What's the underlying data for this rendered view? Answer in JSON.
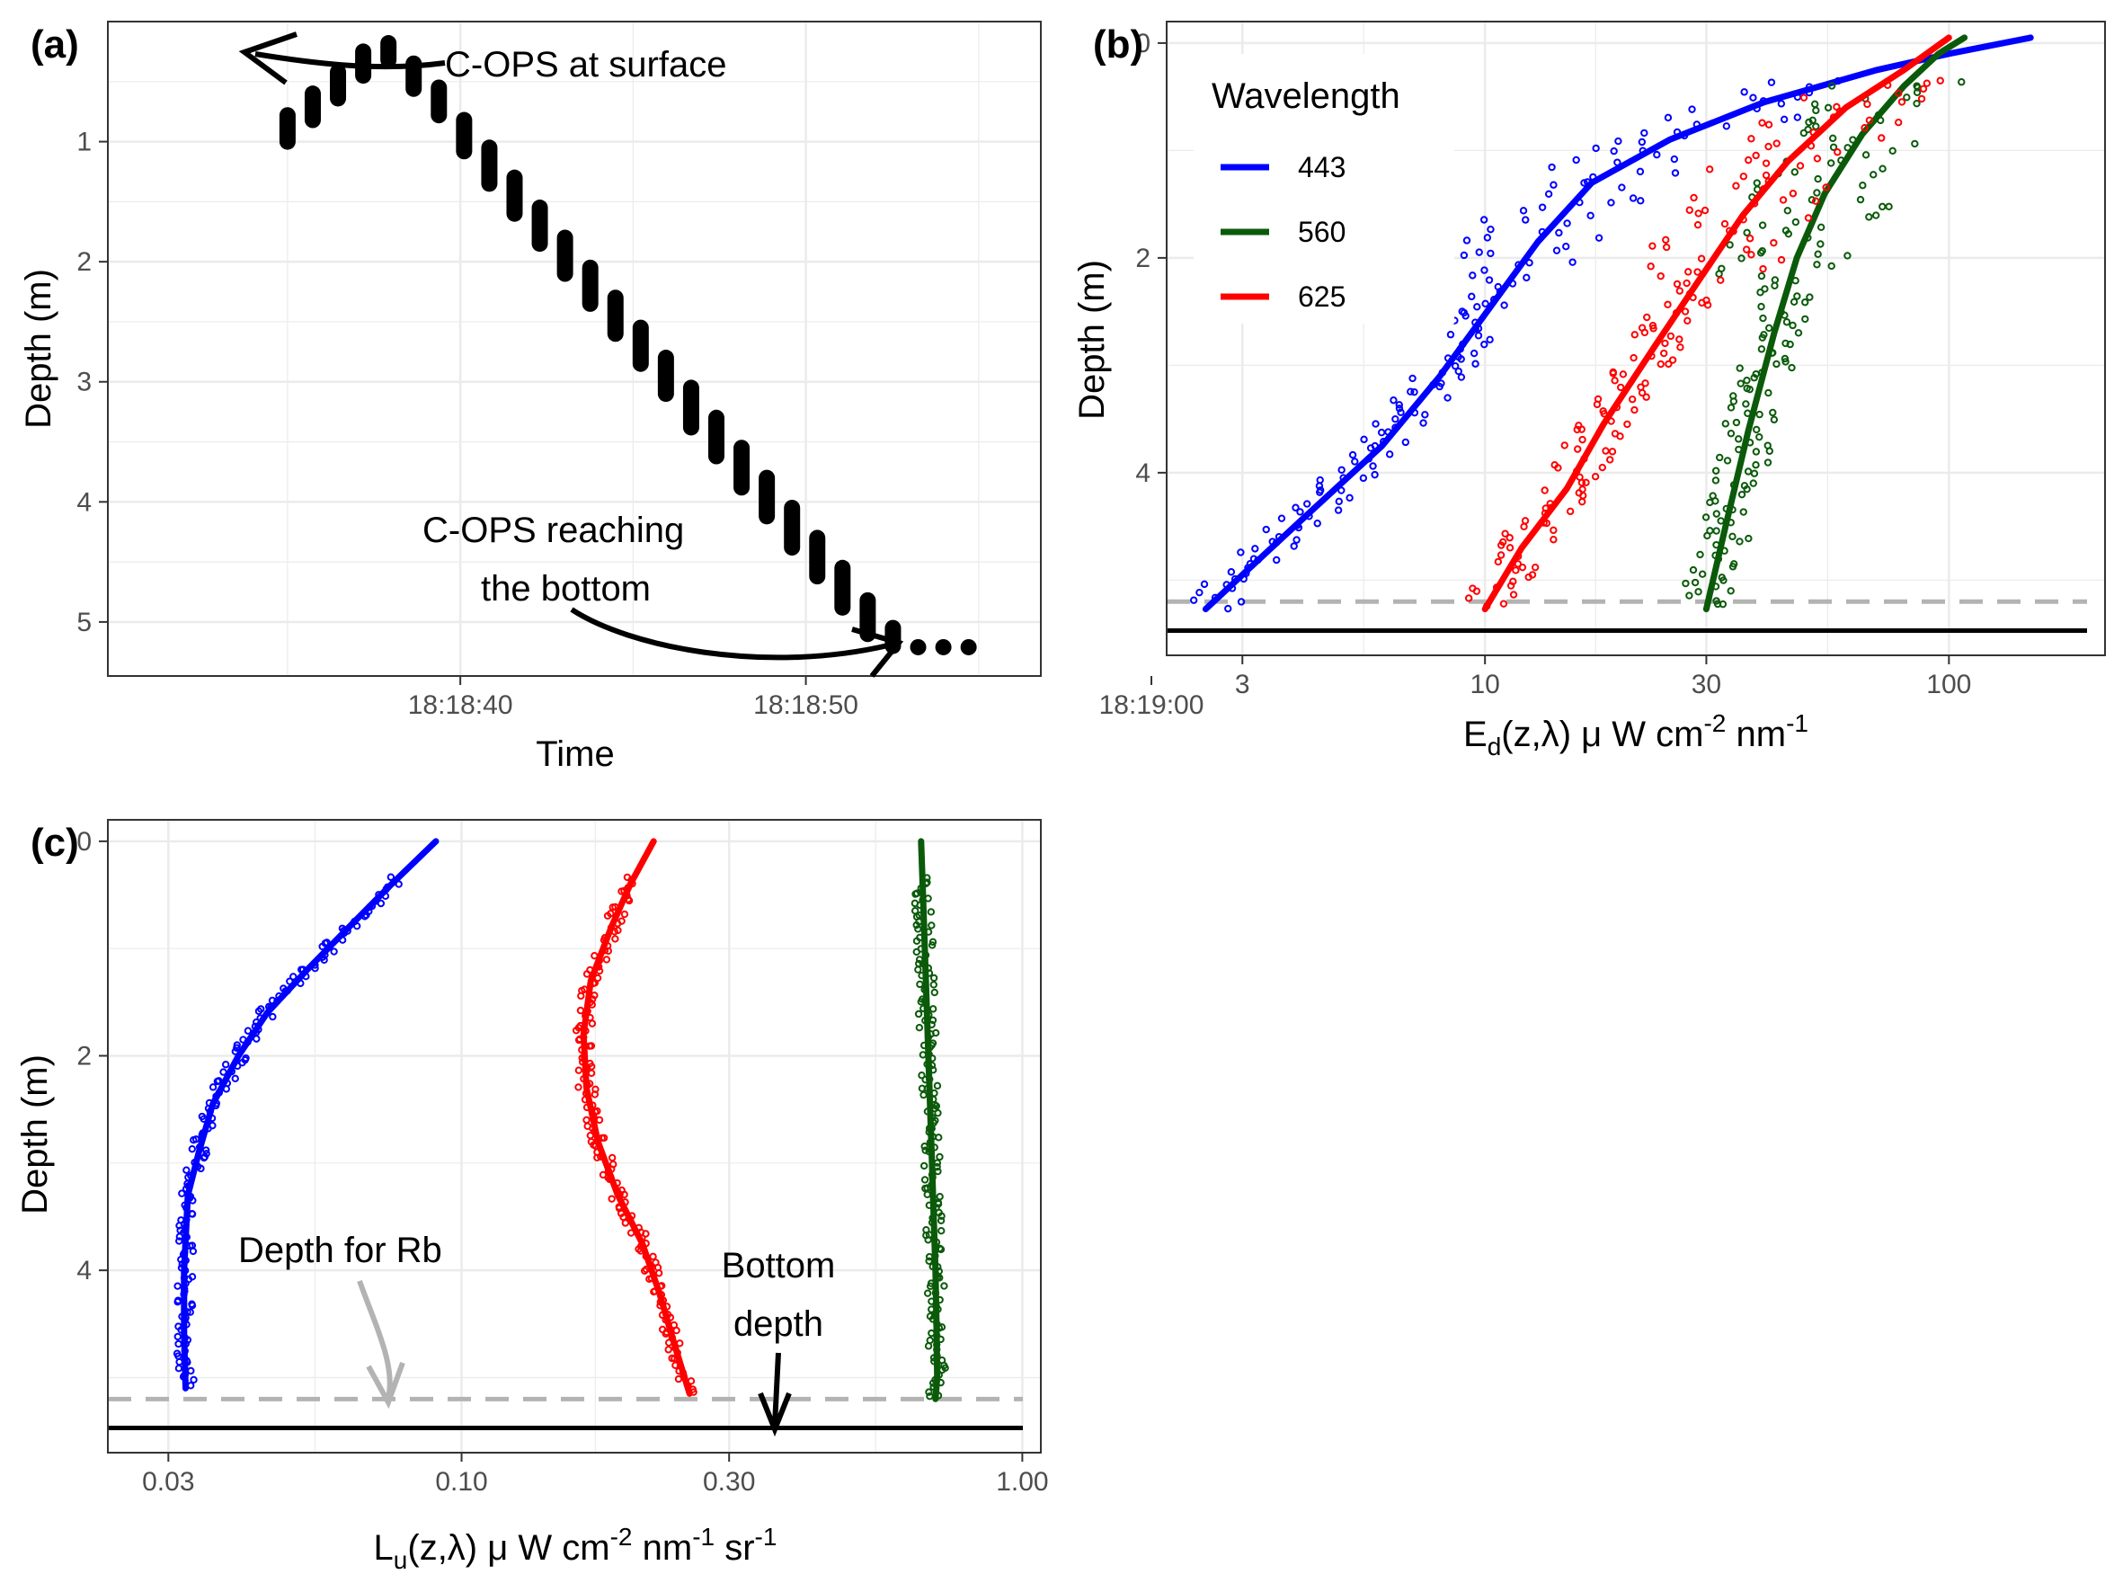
{
  "chart_data": [
    {
      "panel_label": "(a)",
      "type": "scatter",
      "xlabel": "Time",
      "ylabel": "Depth (m)",
      "x_ticks": [
        "18:18:40",
        "18:18:50",
        "18:19:00"
      ],
      "y_ticks": [
        1,
        2,
        3,
        4,
        5
      ],
      "xlim": [
        -5.2,
        21.8
      ],
      "ylim": [
        5.45,
        0.0
      ],
      "x_unit": "seconds after 18:18:35",
      "points": [
        {
          "t": 0,
          "d0": 0.78,
          "d1": 1.0
        },
        {
          "t": 1,
          "d0": 0.6,
          "d1": 0.82
        },
        {
          "t": 2,
          "d0": 0.42,
          "d1": 0.64
        },
        {
          "t": 3,
          "d0": 0.25,
          "d1": 0.45
        },
        {
          "t": 4,
          "d0": 0.18,
          "d1": 0.32
        },
        {
          "t": 5,
          "d0": 0.35,
          "d1": 0.56
        },
        {
          "t": 6,
          "d0": 0.55,
          "d1": 0.78
        },
        {
          "t": 7,
          "d0": 0.82,
          "d1": 1.08
        },
        {
          "t": 8,
          "d0": 1.05,
          "d1": 1.35
        },
        {
          "t": 9,
          "d0": 1.3,
          "d1": 1.6
        },
        {
          "t": 10,
          "d0": 1.55,
          "d1": 1.85
        },
        {
          "t": 11,
          "d0": 1.8,
          "d1": 2.1
        },
        {
          "t": 12,
          "d0": 2.05,
          "d1": 2.35
        },
        {
          "t": 13,
          "d0": 2.3,
          "d1": 2.6
        },
        {
          "t": 14,
          "d0": 2.55,
          "d1": 2.85
        },
        {
          "t": 15,
          "d0": 2.8,
          "d1": 3.1
        },
        {
          "t": 16,
          "d0": 3.05,
          "d1": 3.38
        },
        {
          "t": 17,
          "d0": 3.3,
          "d1": 3.62
        },
        {
          "t": 18,
          "d0": 3.55,
          "d1": 3.88
        },
        {
          "t": 19,
          "d0": 3.8,
          "d1": 4.12
        },
        {
          "t": 20,
          "d0": 4.05,
          "d1": 4.38
        },
        {
          "t": 21,
          "d0": 4.3,
          "d1": 4.62
        },
        {
          "t": 22,
          "d0": 4.55,
          "d1": 4.88
        },
        {
          "t": 23,
          "d0": 4.82,
          "d1": 5.1
        },
        {
          "t": 24,
          "d0": 5.05,
          "d1": 5.2
        },
        {
          "t": 25,
          "d0": 5.21,
          "d1": 5.21
        },
        {
          "t": 26,
          "d0": 5.21,
          "d1": 5.21
        },
        {
          "t": 27,
          "d0": 5.21,
          "d1": 5.21
        }
      ],
      "annotations": [
        "C-OPS at surface",
        "C-OPS reaching",
        "the bottom"
      ]
    },
    {
      "panel_label": "(b)",
      "type": "line",
      "xscale": "log10",
      "xlabel": {
        "main": "E",
        "sub": "d",
        "mid": "(z,λ) μ W cm",
        "sup1": "-2",
        "mid2": " nm",
        "sup2": "-1"
      },
      "ylabel": "Depth (m)",
      "x_ticks": [
        "3",
        "10",
        "30",
        "100"
      ],
      "x_tick_values": [
        3,
        10,
        30,
        100
      ],
      "y_ticks": [
        "0",
        "2",
        "4"
      ],
      "y_tick_values": [
        0,
        2,
        4
      ],
      "xlim": [
        2.06,
        217
      ],
      "ylim": [
        5.7,
        -0.2
      ],
      "legend": {
        "title": "Wavelength",
        "position": "top-left"
      },
      "rb_depth": 5.2,
      "bottom_depth": 5.47,
      "series": [
        {
          "name": "443",
          "color": "#0000ff",
          "fit": [
            [
              2.5,
              5.27
            ],
            [
              3.0,
              4.95
            ],
            [
              4.0,
              4.45
            ],
            [
              6.0,
              3.75
            ],
            [
              8.0,
              3.1
            ],
            [
              10.5,
              2.4
            ],
            [
              13.0,
              1.85
            ],
            [
              17.0,
              1.3
            ],
            [
              25.0,
              0.9
            ],
            [
              40.0,
              0.55
            ],
            [
              70.0,
              0.25
            ],
            [
              100.0,
              0.1
            ],
            [
              150.0,
              -0.05
            ]
          ],
          "scatter_band": 0.12
        },
        {
          "name": "560",
          "color": "#0a5a0a",
          "fit": [
            [
              30.0,
              5.27
            ],
            [
              33.0,
              4.5
            ],
            [
              37.0,
              3.6
            ],
            [
              42.0,
              2.7
            ],
            [
              47.0,
              2.0
            ],
            [
              54.0,
              1.4
            ],
            [
              65.0,
              0.85
            ],
            [
              80.0,
              0.4
            ],
            [
              95.0,
              0.1
            ],
            [
              108.0,
              -0.05
            ]
          ],
          "scatter_band": 0.12
        },
        {
          "name": "625",
          "color": "#ff0000",
          "fit": [
            [
              10.0,
              5.27
            ],
            [
              12.0,
              4.7
            ],
            [
              15.0,
              4.15
            ],
            [
              18.0,
              3.55
            ],
            [
              23.0,
              2.85
            ],
            [
              29.0,
              2.2
            ],
            [
              36.0,
              1.6
            ],
            [
              45.0,
              1.1
            ],
            [
              60.0,
              0.6
            ],
            [
              80.0,
              0.25
            ],
            [
              100.0,
              -0.05
            ]
          ],
          "scatter_band": 0.14
        }
      ]
    },
    {
      "panel_label": "(c)",
      "type": "line",
      "xscale": "log10",
      "xlabel": {
        "main": "L",
        "sub": "u",
        "mid": "(z,λ) μ W cm",
        "sup1": "-2",
        "mid2": " nm",
        "sup2": "-1",
        "mid3": " sr",
        "sup3": "-1"
      },
      "ylabel": "Depth (m)",
      "x_ticks": [
        "0.03",
        "0.10",
        "0.30",
        "1.00"
      ],
      "x_tick_values": [
        0.03,
        0.1,
        0.3,
        1.0
      ],
      "y_ticks": [
        "0",
        "2",
        "4"
      ],
      "y_tick_values": [
        0,
        2,
        4
      ],
      "xlim": [
        0.0234,
        1.079
      ],
      "ylim": [
        5.7,
        -0.2
      ],
      "rb_depth": 5.2,
      "bottom_depth": 5.47,
      "series": [
        {
          "name": "443",
          "color": "#0000ff",
          "fit": [
            [
              0.09,
              0.0
            ],
            [
              0.075,
              0.4
            ],
            [
              0.063,
              0.8
            ],
            [
              0.053,
              1.2
            ],
            [
              0.045,
              1.6
            ],
            [
              0.04,
              2.0
            ],
            [
              0.036,
              2.45
            ],
            [
              0.034,
              2.9
            ],
            [
              0.0325,
              3.3
            ],
            [
              0.032,
              4.0
            ],
            [
              0.032,
              4.6
            ],
            [
              0.0322,
              5.1
            ]
          ],
          "scatter_band": 0.0
        },
        {
          "name": "625",
          "color": "#ff0000",
          "fit": [
            [
              0.22,
              0.0
            ],
            [
              0.2,
              0.4
            ],
            [
              0.185,
              0.8
            ],
            [
              0.17,
              1.3
            ],
            [
              0.165,
              1.8
            ],
            [
              0.167,
              2.3
            ],
            [
              0.175,
              2.8
            ],
            [
              0.19,
              3.3
            ],
            [
              0.21,
              3.75
            ],
            [
              0.225,
              4.2
            ],
            [
              0.24,
              4.7
            ],
            [
              0.255,
              5.15
            ]
          ],
          "scatter_band": 0.0
        },
        {
          "name": "560",
          "color": "#0a5a0a",
          "fit": [
            [
              0.66,
              0.0
            ],
            [
              0.665,
              0.5
            ],
            [
              0.67,
              1.0
            ],
            [
              0.675,
              1.5
            ],
            [
              0.68,
              2.0
            ],
            [
              0.685,
              2.5
            ],
            [
              0.69,
              3.0
            ],
            [
              0.695,
              3.5
            ],
            [
              0.7,
              4.0
            ],
            [
              0.703,
              4.5
            ],
            [
              0.705,
              5.0
            ],
            [
              0.7,
              5.2
            ]
          ],
          "scatter_band": 0.0
        }
      ],
      "annotations": [
        "Depth for Rb",
        "Bottom",
        "depth"
      ]
    }
  ]
}
